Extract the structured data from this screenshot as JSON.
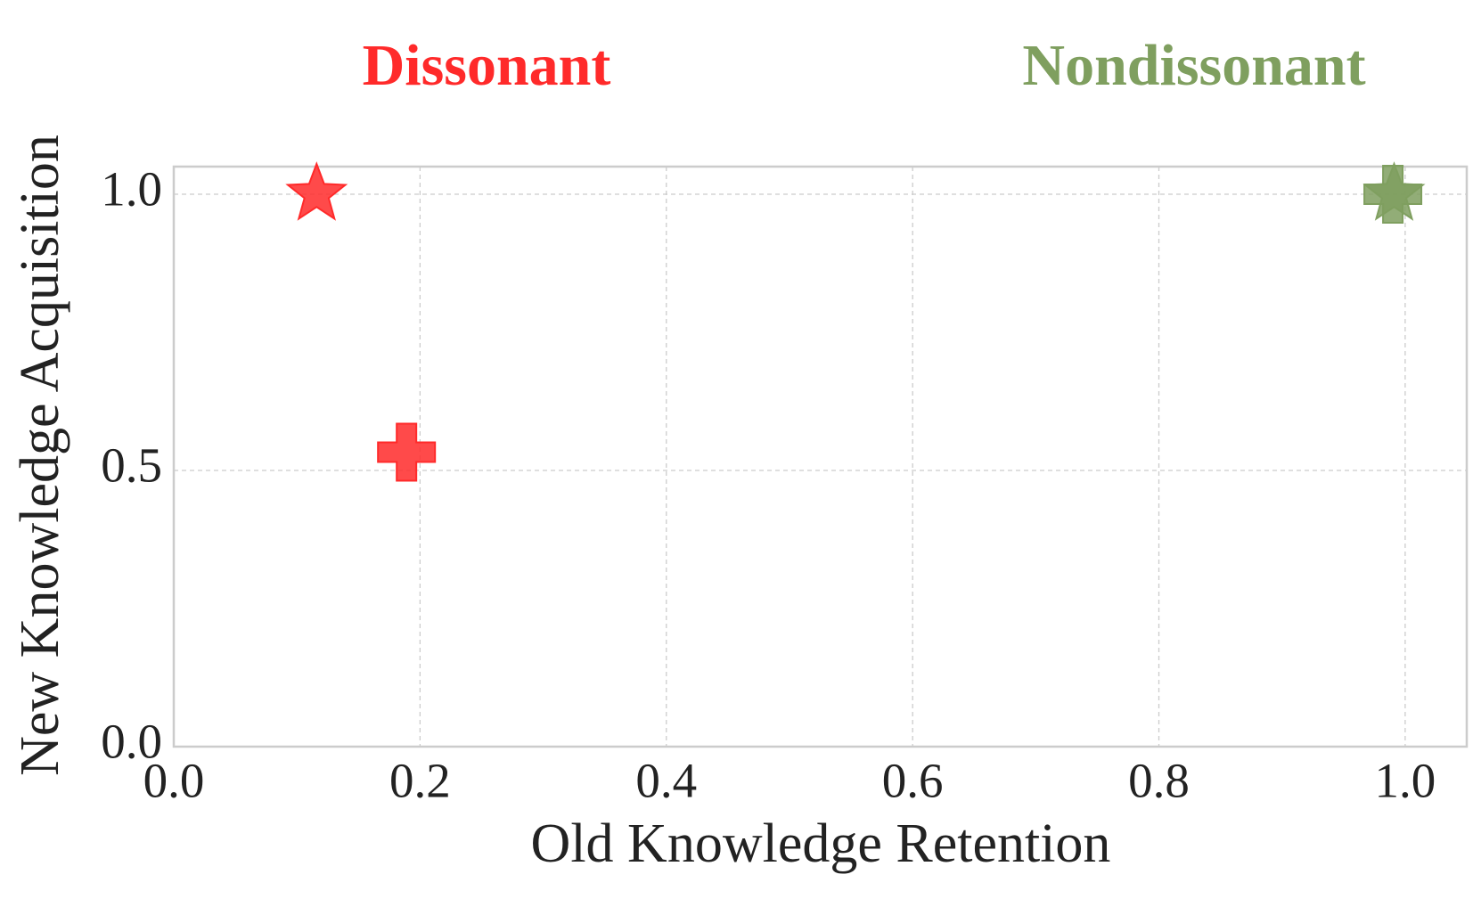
{
  "chart_data": {
    "type": "scatter",
    "xlabel": "Old Knowledge Retention",
    "ylabel": "New Knowledge Acquisition",
    "xlim": [
      0,
      1.05
    ],
    "ylim": [
      0,
      1.05
    ],
    "xticks": [
      {
        "value": 0,
        "label": "0.0"
      },
      0.2,
      0.4,
      0.6,
      0.8,
      {
        "value": 1,
        "label": "1.0"
      }
    ],
    "yticks": [
      {
        "value": 0,
        "label": "0.0"
      },
      0.5,
      {
        "value": 1,
        "label": "1.0"
      }
    ],
    "grid": true,
    "series": [
      {
        "name": "Dissonant",
        "color": "#ff2a2a",
        "markers": [
          "star",
          "plus"
        ],
        "x": [
          0.116,
          0.189
        ],
        "values": [
          1.0,
          0.533
        ]
      },
      {
        "name": "Nondissonant",
        "color": "#7f9f5f",
        "markers": [
          "plus",
          "star"
        ],
        "x": [
          0.99,
          0.991
        ],
        "values": [
          1.0,
          1.0
        ]
      }
    ]
  }
}
